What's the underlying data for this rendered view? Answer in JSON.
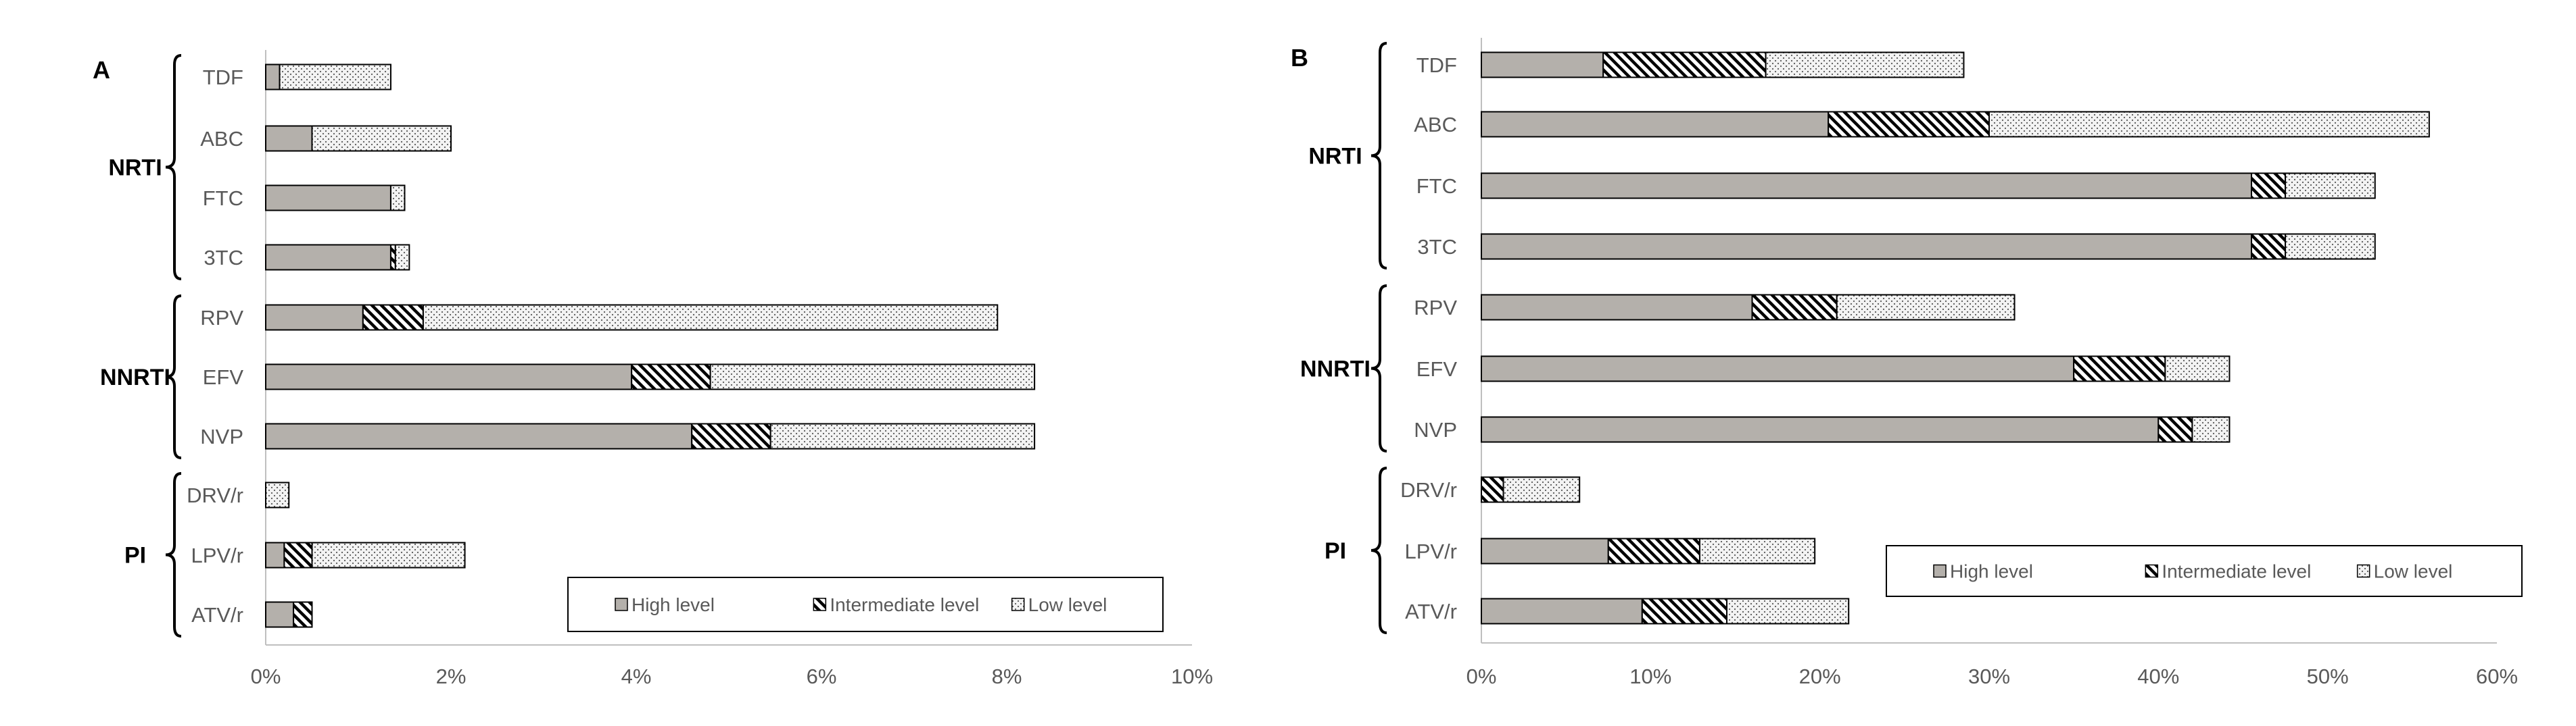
{
  "chart_data": [
    {
      "type": "bar",
      "stacked": true,
      "orientation": "horizontal",
      "panel_label": "A",
      "xlim": [
        0,
        10
      ],
      "x_unit": "%",
      "x_ticks": [
        "0%",
        "2%",
        "4%",
        "6%",
        "8%",
        "10%"
      ],
      "groups": [
        {
          "name": "NRTI",
          "categories": [
            "TDF",
            "ABC",
            "FTC",
            "3TC"
          ]
        },
        {
          "name": "NNRTI",
          "categories": [
            "RPV",
            "EFV",
            "NVP"
          ]
        },
        {
          "name": "PI",
          "categories": [
            "DRV/r",
            "LPV/r",
            "ATV/r"
          ]
        }
      ],
      "categories": [
        "TDF",
        "ABC",
        "FTC",
        "3TC",
        "RPV",
        "EFV",
        "NVP",
        "DRV/r",
        "LPV/r",
        "ATV/r"
      ],
      "series": [
        {
          "name": "High level",
          "values": [
            0.15,
            0.5,
            1.35,
            1.35,
            1.05,
            3.95,
            4.6,
            0.0,
            0.2,
            0.3
          ]
        },
        {
          "name": "Intermediate level",
          "values": [
            0.0,
            0.0,
            0.0,
            0.05,
            0.65,
            0.85,
            0.85,
            0.0,
            0.3,
            0.2
          ]
        },
        {
          "name": "Low level",
          "values": [
            1.2,
            1.5,
            0.15,
            0.15,
            6.2,
            3.5,
            2.85,
            0.25,
            1.65,
            0.0
          ]
        }
      ],
      "legend_position": "bottom-right"
    },
    {
      "type": "bar",
      "stacked": true,
      "orientation": "horizontal",
      "panel_label": "B",
      "xlim": [
        0,
        60
      ],
      "x_unit": "%",
      "x_ticks": [
        "0%",
        "10%",
        "20%",
        "30%",
        "40%",
        "50%",
        "60%"
      ],
      "groups": [
        {
          "name": "NRTI",
          "categories": [
            "TDF",
            "ABC",
            "FTC",
            "3TC"
          ]
        },
        {
          "name": "NNRTI",
          "categories": [
            "RPV",
            "EFV",
            "NVP"
          ]
        },
        {
          "name": "PI",
          "categories": [
            "DRV/r",
            "LPV/r",
            "ATV/r"
          ]
        }
      ],
      "categories": [
        "TDF",
        "ABC",
        "FTC",
        "3TC",
        "RPV",
        "EFV",
        "NVP",
        "DRV/r",
        "LPV/r",
        "ATV/r"
      ],
      "series": [
        {
          "name": "High level",
          "values": [
            7.2,
            20.5,
            45.5,
            45.5,
            16.0,
            35.0,
            40.0,
            0.0,
            7.5,
            9.5
          ]
        },
        {
          "name": "Intermediate level",
          "values": [
            9.6,
            9.5,
            2.0,
            2.0,
            5.0,
            5.4,
            2.0,
            1.3,
            5.4,
            5.0
          ]
        },
        {
          "name": "Low level",
          "values": [
            11.7,
            26.0,
            5.3,
            5.3,
            10.5,
            3.8,
            2.2,
            4.5,
            6.8,
            7.2
          ]
        }
      ],
      "legend_position": "bottom-right"
    }
  ]
}
